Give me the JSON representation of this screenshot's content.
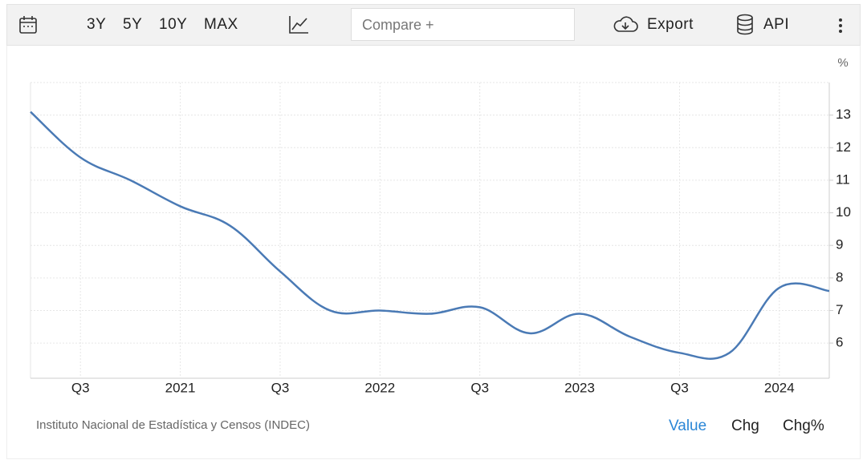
{
  "toolbar": {
    "ranges": [
      "3Y",
      "5Y",
      "10Y",
      "MAX"
    ],
    "compare": "Compare +",
    "export": "Export",
    "api": "API"
  },
  "chart_data": {
    "type": "line",
    "unit": "%",
    "categories": [
      null,
      "Q3",
      null,
      "2021",
      null,
      "Q3",
      null,
      "2022",
      null,
      "Q3",
      null,
      "2023",
      null,
      "Q3",
      null,
      "2024",
      null
    ],
    "series": [
      {
        "color": "#4a7ab5",
        "values": [
          13.1,
          11.7,
          11.0,
          10.2,
          9.6,
          8.2,
          7.0,
          7.0,
          6.9,
          7.1,
          6.3,
          6.9,
          6.2,
          5.7,
          5.7,
          7.7,
          7.6
        ]
      }
    ],
    "ylim": [
      4.92,
      14
    ],
    "yticks": [
      6,
      7,
      8,
      9,
      10,
      11,
      12,
      13
    ],
    "grid": true,
    "source": "Instituto Nacional de Estadística y Censos (INDEC)"
  },
  "footer": {
    "tabs": [
      "Value",
      "Chg",
      "Chg%"
    ]
  }
}
